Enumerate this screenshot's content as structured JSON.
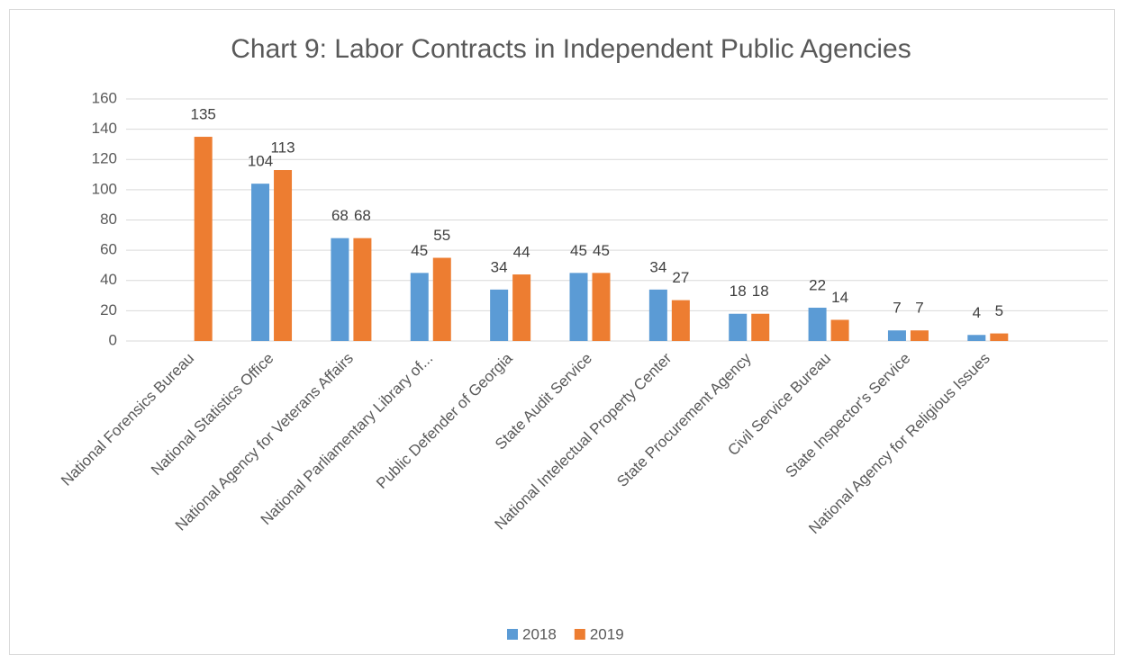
{
  "chart_data": {
    "type": "bar",
    "title": "Chart 9: Labor Contracts in Independent Public Agencies",
    "categories": [
      "National Forensics Bureau",
      "National Statistics Office",
      "National Agency for Veterans Affairs",
      "National Parliamentary Library of...",
      "Public Defender of Georgia",
      "State Audit Service",
      "National Intelectual Property Center",
      "State Procurement Agency",
      "Civil Service Bureau",
      "State Inspector's Service",
      "National Agency for Religious Issues"
    ],
    "series": [
      {
        "name": "2018",
        "color": "#5b9bd5",
        "values": [
          null,
          104,
          68,
          45,
          34,
          45,
          34,
          18,
          22,
          7,
          4
        ]
      },
      {
        "name": "2019",
        "color": "#ed7d31",
        "values": [
          135,
          113,
          68,
          55,
          44,
          45,
          27,
          18,
          14,
          7,
          5
        ]
      }
    ],
    "ylim": [
      0,
      160
    ],
    "yticks": [
      0,
      20,
      40,
      60,
      80,
      100,
      120,
      140,
      160
    ],
    "grid": true,
    "legend": "bottom"
  }
}
